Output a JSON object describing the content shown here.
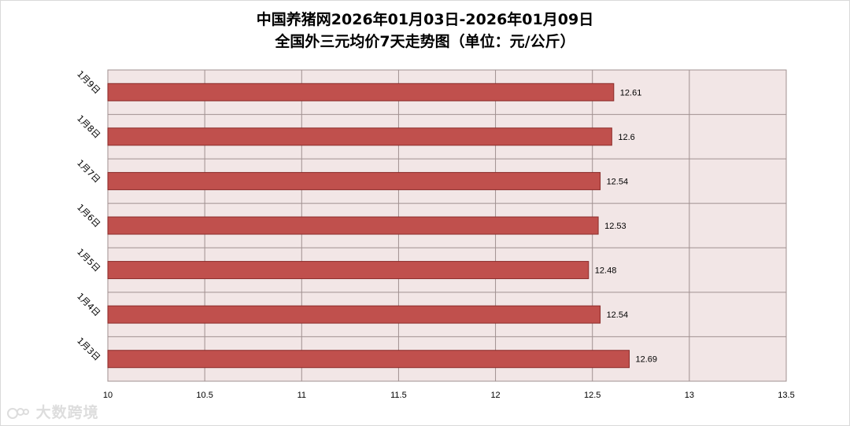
{
  "title_line1": "中国养猪网2026年01月03日-2026年01月09日",
  "title_line2": "全国外三元均价7天走势图（单位：元/公斤）",
  "watermark": "大数跨境",
  "colors": {
    "bar": "#c0504d",
    "bar_stroke": "#8b2c2a",
    "plot_bg": "#f2e6e6",
    "grid": "#a09090"
  },
  "chart_data": {
    "type": "bar",
    "orientation": "horizontal",
    "title": "中国养猪网2026年01月03日-2026年01月09日 全国外三元均价7天走势图（单位：元/公斤）",
    "categories": [
      "1月3日",
      "1月4日",
      "1月5日",
      "1月6日",
      "1月7日",
      "1月8日",
      "1月9日"
    ],
    "values": [
      12.69,
      12.54,
      12.48,
      12.53,
      12.54,
      12.6,
      12.61
    ],
    "value_labels": [
      "12.69",
      "12.54",
      "12.48",
      "12.53",
      "12.54",
      "12.6",
      "12.61"
    ],
    "xlim": [
      10,
      13.5
    ],
    "xticks": [
      "10",
      "10.5",
      "11",
      "11.5",
      "12",
      "12.5",
      "13",
      "13.5"
    ],
    "grid": true,
    "legend": "none"
  }
}
